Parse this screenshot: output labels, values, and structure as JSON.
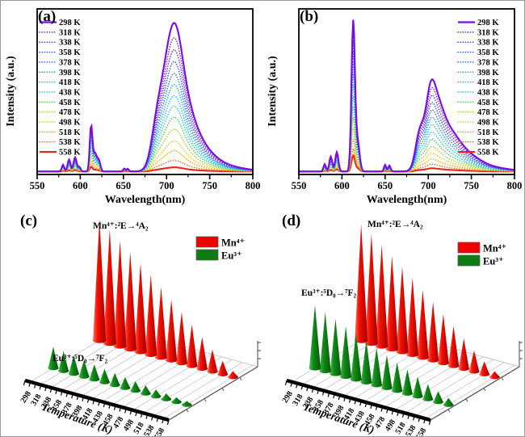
{
  "figure": {
    "background": "#ffffff",
    "border_color": "#9a9a9a"
  },
  "temperatures": [
    "298 K",
    "318 K",
    "338 K",
    "358 K",
    "378 K",
    "398 K",
    "418 K",
    "438 K",
    "458 K",
    "478 K",
    "498 K",
    "518 K",
    "538 K",
    "558 K"
  ],
  "temperature_values": [
    298,
    318,
    338,
    358,
    378,
    398,
    418,
    438,
    458,
    478,
    498,
    518,
    538,
    558
  ],
  "series_colors": [
    "#7C0BE0",
    "#7A2AEC",
    "#5D3CF1",
    "#3F55F3",
    "#2F7DF5",
    "#2AA4F2",
    "#1EC8E4",
    "#2BD6AE",
    "#4ED163",
    "#9EDC2C",
    "#EDC91F",
    "#F6A41D",
    "#F4701E",
    "#E62817"
  ],
  "series_styles": [
    "solid",
    "dot",
    "dot",
    "dot",
    "dot",
    "dot",
    "dot",
    "dot",
    "dot",
    "dot",
    "dot",
    "dot",
    "dot",
    "solid"
  ],
  "chart_data": [
    {
      "id": "a",
      "panel_label": "(a)",
      "type": "line",
      "title": "",
      "xlabel": "Wavelength(nm)",
      "ylabel": "Intensity (a.u.)",
      "x_min": 550,
      "x_max": 800,
      "x_ticks": [
        550,
        600,
        650,
        700,
        750,
        800
      ],
      "grid": false,
      "legend_position": "left",
      "eu_peaks": [
        [
          580,
          0.045,
          2.0
        ],
        [
          587,
          0.08,
          2.4
        ],
        [
          594,
          0.095,
          2.6
        ],
        [
          599,
          0.03,
          2.0
        ],
        [
          612.5,
          0.3,
          2.2
        ],
        [
          617,
          0.12,
          3.0
        ],
        [
          621.5,
          0.07,
          2.6
        ],
        [
          651,
          0.02,
          1.8
        ],
        [
          655,
          0.018,
          1.8
        ]
      ],
      "mn_peaks": [
        [
          700,
          0.5,
          13
        ],
        [
          711,
          0.52,
          12
        ],
        [
          688,
          0.18,
          9
        ],
        [
          722,
          0.28,
          16
        ],
        [
          737,
          0.12,
          22
        ],
        [
          752,
          0.05,
          40
        ]
      ],
      "eu_scale": [
        1,
        0.95,
        0.89,
        0.83,
        0.76,
        0.69,
        0.62,
        0.545,
        0.465,
        0.385,
        0.305,
        0.23,
        0.16,
        0.1
      ],
      "mn_scale": [
        1,
        0.9,
        0.82,
        0.74,
        0.66,
        0.585,
        0.51,
        0.44,
        0.365,
        0.285,
        0.205,
        0.14,
        0.075,
        0.028
      ],
      "baseline": 0.012,
      "normalize_to": 0.94
    },
    {
      "id": "b",
      "panel_label": "(b)",
      "type": "line",
      "title": "",
      "xlabel": "Wavelength(nm)",
      "ylabel": "Intensity (a.u.)",
      "x_min": 550,
      "x_max": 800,
      "x_ticks": [
        550,
        600,
        650,
        700,
        750,
        800
      ],
      "grid": false,
      "legend_position": "right",
      "eu_peaks": [
        [
          580,
          0.05,
          2.0
        ],
        [
          587,
          0.1,
          2.4
        ],
        [
          594,
          0.13,
          2.6
        ],
        [
          613,
          1.0,
          2.8
        ],
        [
          618,
          0.2,
          3.4
        ],
        [
          650,
          0.045,
          1.8
        ],
        [
          655,
          0.04,
          2.0
        ]
      ],
      "mn_peaks": [
        [
          690,
          0.24,
          7
        ],
        [
          702,
          0.41,
          8
        ],
        [
          711,
          0.26,
          10
        ],
        [
          722,
          0.2,
          16
        ],
        [
          740,
          0.09,
          22
        ],
        [
          755,
          0.04,
          40
        ]
      ],
      "eu_scale": [
        1,
        0.93,
        0.86,
        0.79,
        0.72,
        0.645,
        0.57,
        0.5,
        0.43,
        0.355,
        0.285,
        0.215,
        0.15,
        0.105
      ],
      "mn_scale": [
        1,
        0.91,
        0.83,
        0.75,
        0.67,
        0.59,
        0.51,
        0.43,
        0.35,
        0.27,
        0.2,
        0.135,
        0.08,
        0.035
      ],
      "baseline": 0.012,
      "normalize_to": 0.96
    },
    {
      "id": "c",
      "panel_label": "(c)",
      "type": "cone_waterfall_3d",
      "axis_title": "Temperature (K)",
      "categories": [
        298,
        318,
        338,
        358,
        378,
        398,
        418,
        438,
        458,
        478,
        498,
        518,
        538,
        558
      ],
      "mn_annotation": "Mn⁴⁺:²E→⁴A₂",
      "eu_annotation": "Eu³⁺:⁵D₀→⁷F₂",
      "legend": [
        {
          "label": "Mn⁴⁺",
          "color": "#F20000"
        },
        {
          "label": "Eu³⁺",
          "color": "#0E7C12"
        }
      ],
      "mn_color": "#F20000",
      "eu_color": "#0E7C12",
      "mn_heights": [
        1,
        0.94,
        0.87,
        0.8,
        0.73,
        0.66,
        0.58,
        0.5,
        0.42,
        0.34,
        0.26,
        0.18,
        0.11,
        0.05
      ],
      "eu_heights": [
        1,
        0.92,
        0.85,
        0.77,
        0.7,
        0.63,
        0.56,
        0.5,
        0.44,
        0.38,
        0.32,
        0.27,
        0.22,
        0.18
      ],
      "mn_max": 0.625,
      "eu_max": 0.11,
      "front_row": "eu"
    },
    {
      "id": "d",
      "panel_label": "(d)",
      "type": "cone_waterfall_3d",
      "axis_title": "Temperature (K)",
      "categories": [
        298,
        318,
        338,
        358,
        378,
        398,
        418,
        438,
        458,
        478,
        498,
        518,
        538,
        558
      ],
      "mn_annotation": "Mn⁴⁺:²E→⁴A₂",
      "eu_annotation": "Eu³⁺:⁵D₀→⁷F₂",
      "legend": [
        {
          "label": "Mn⁴⁺",
          "color": "#F20000"
        },
        {
          "label": "Eu³⁺",
          "color": "#0E7C12"
        }
      ],
      "mn_color": "#F20000",
      "eu_color": "#0E7C12",
      "mn_heights": [
        1,
        0.94,
        0.87,
        0.8,
        0.73,
        0.66,
        0.58,
        0.5,
        0.42,
        0.34,
        0.26,
        0.18,
        0.11,
        0.05
      ],
      "eu_heights": [
        1,
        0.93,
        0.87,
        0.8,
        0.73,
        0.66,
        0.59,
        0.52,
        0.45,
        0.38,
        0.31,
        0.24,
        0.17,
        0.11
      ],
      "mn_max": 0.6,
      "eu_max": 0.325,
      "front_row": "eu"
    }
  ]
}
